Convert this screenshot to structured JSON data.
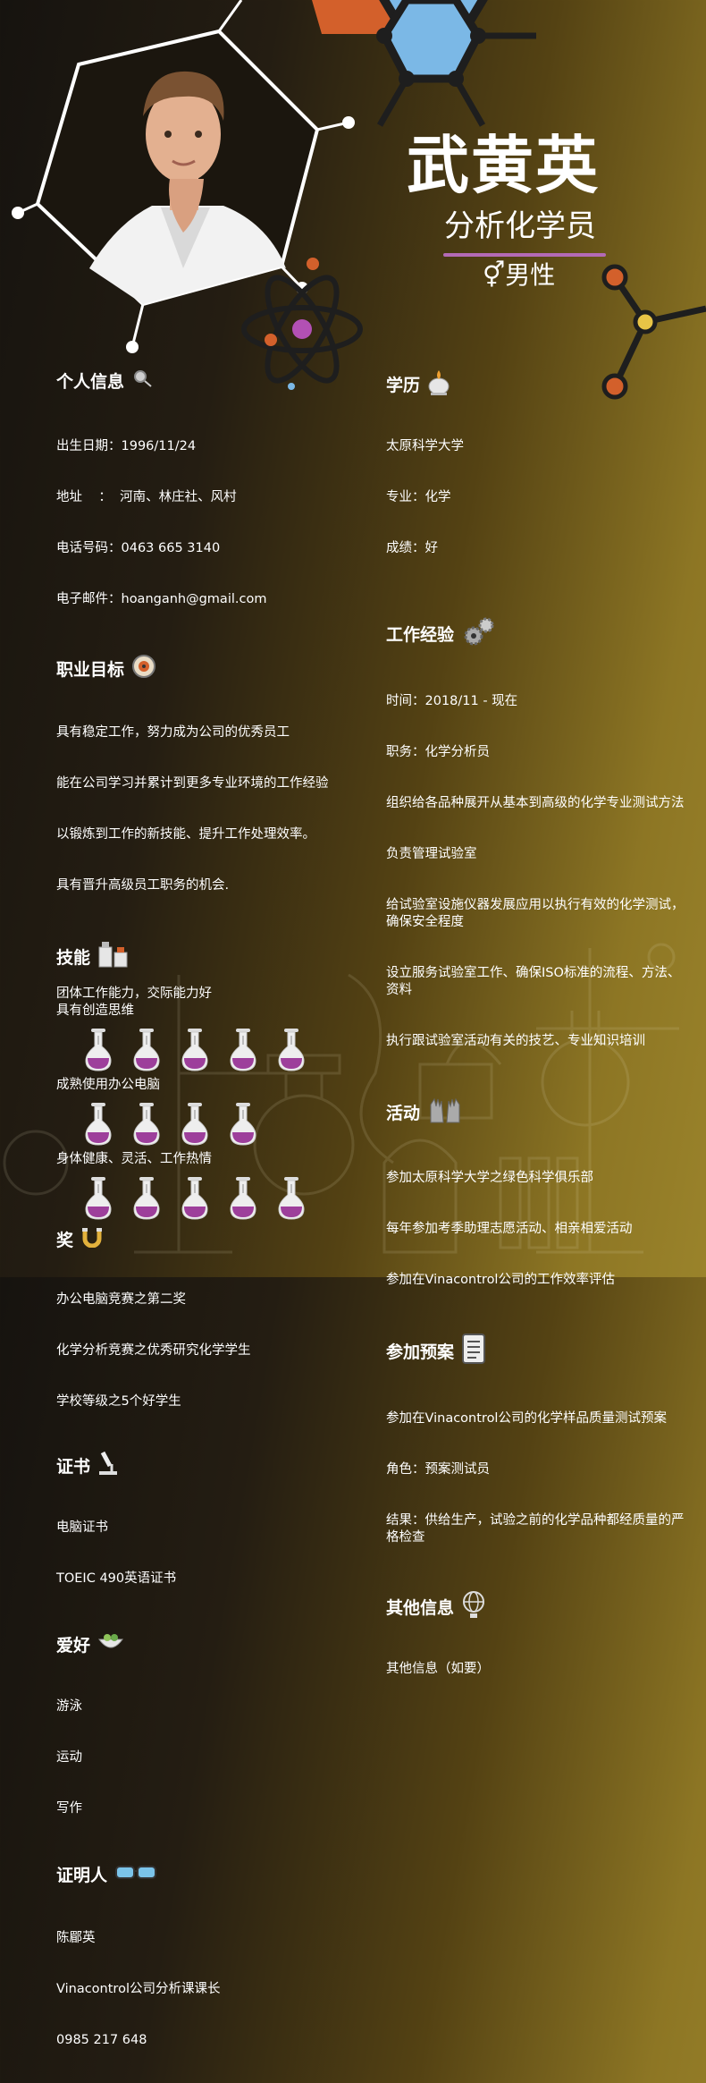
{
  "header": {
    "name": "武黄英",
    "job_title": "分析化学员",
    "gender_symbol": "⚥",
    "gender": "男性"
  },
  "colors": {
    "accent": "#b46ab6",
    "flask": "#9d3f9b",
    "orange": "#d3602b",
    "blue": "#7bb8e6"
  },
  "left": {
    "personal": {
      "heading": "个人信息",
      "lines": [
        "出生日期：1996/11/24",
        "地址    ：  河南、林庄社、风村",
        "电话号码：0463 665 3140",
        "电子邮件：hoanganh@gmail.com"
      ]
    },
    "goal": {
      "heading": "职业目标",
      "lines": [
        "具有稳定工作，努力成为公司的优秀员工",
        "能在公司学习并累计到更多专业环境的工作经验",
        "以锻炼到工作的新技能、提升工作处理效率。",
        "具有晋升高级员工职务的机会."
      ]
    },
    "skills": {
      "heading": "技能",
      "items": [
        {
          "label": "团体工作能力，交际能力好\n具有创造思维",
          "rating": 5
        },
        {
          "label": "成熟使用办公电脑",
          "rating": 4
        },
        {
          "label": "身体健康、灵活、工作热情",
          "rating": 5
        }
      ]
    },
    "awards": {
      "heading": "奖",
      "lines": [
        "办公电脑竞赛之第二奖",
        "化学分析竞赛之优秀研究化学学生",
        "学校等级之5个好学生"
      ]
    },
    "certs": {
      "heading": "证书",
      "lines": [
        "电脑证书",
        "TOEIC 490英语证书"
      ]
    },
    "hobbies": {
      "heading": "爱好",
      "lines": [
        "游泳",
        "运动",
        "写作"
      ]
    },
    "referee": {
      "heading": "证明人",
      "lines": [
        "陈郿英",
        "Vinacontrol公司分析课课长",
        "0985 217 648"
      ]
    }
  },
  "right": {
    "education": {
      "heading": "学历",
      "lines": [
        "太原科学大学",
        "专业：化学",
        "成绩：好"
      ]
    },
    "experience": {
      "heading": "工作经验",
      "lines": [
        "时间：2018/11 - 现在",
        "职务：化学分析员",
        "组织给各品种展开从基本到高级的化学专业测试方法",
        "负责管理试验室",
        "给试验室设施仪器发展应用以执行有效的化学测试，确保安全程度",
        "设立服务试验室工作、确保ISO标准的流程、方法、资料",
        "执行跟试验室活动有关的技艺、专业知识培训"
      ]
    },
    "activities": {
      "heading": "活动",
      "lines": [
        "参加太原科学大学之绿色科学俱乐部",
        "每年参加考季助理志愿活动、相亲相爱活动",
        "参加在Vinacontrol公司的工作效率评估"
      ]
    },
    "projects": {
      "heading": "参加预案",
      "lines": [
        "参加在Vinacontrol公司的化学样品质量测试预案",
        "角色：预案测试员",
        "结果：供给生产，试验之前的化学品种都经质量的严格检查"
      ]
    },
    "other": {
      "heading": "其他信息",
      "lines": [
        "其他信息（如要）"
      ]
    }
  }
}
